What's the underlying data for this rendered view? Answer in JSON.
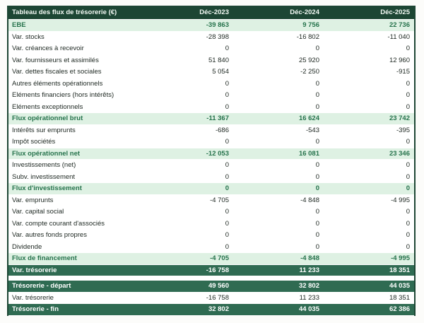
{
  "page": {
    "background": "#fcfcfa"
  },
  "colors": {
    "header_bg": "#1d4634",
    "header_text": "#f3f9f4",
    "subtotal_bg": "#def1e3",
    "subtotal_text": "#26734c",
    "total_bg": "#2f6b52",
    "total_text": "#ffffff",
    "row_bg": "#ffffff",
    "row_text": "#212b25",
    "table_border": "#1d4634"
  },
  "table": {
    "title": "Tableau des flux de trésorerie (€)",
    "columns": [
      "Déc-2023",
      "Déc-2024",
      "Déc-2025"
    ],
    "rows": [
      {
        "label": "EBE",
        "type": "subtotal",
        "values": [
          "-39 863",
          "9 756",
          "22 736"
        ]
      },
      {
        "label": "Var. stocks",
        "type": "normal",
        "values": [
          "-28 398",
          "-16 802",
          "-11 040"
        ]
      },
      {
        "label": "Var. créances à recevoir",
        "type": "normal",
        "values": [
          "0",
          "0",
          "0"
        ]
      },
      {
        "label": "Var. fournisseurs et assimilés",
        "type": "normal",
        "values": [
          "51 840",
          "25 920",
          "12 960"
        ]
      },
      {
        "label": "Var. dettes fiscales et sociales",
        "type": "normal",
        "values": [
          "5 054",
          "-2 250",
          "-915"
        ]
      },
      {
        "label": "Autres éléments opérationnels",
        "type": "normal",
        "values": [
          "0",
          "0",
          "0"
        ]
      },
      {
        "label": "Eléments financiers (hors intérêts)",
        "type": "normal",
        "values": [
          "0",
          "0",
          "0"
        ]
      },
      {
        "label": "Eléments exceptionnels",
        "type": "normal",
        "values": [
          "0",
          "0",
          "0"
        ]
      },
      {
        "label": "Flux opérationnel brut",
        "type": "subtotal",
        "values": [
          "-11 367",
          "16 624",
          "23 742"
        ]
      },
      {
        "label": "Intérêts sur emprunts",
        "type": "normal",
        "values": [
          "-686",
          "-543",
          "-395"
        ]
      },
      {
        "label": "Impôt sociétés",
        "type": "normal",
        "values": [
          "0",
          "0",
          "0"
        ]
      },
      {
        "label": "Flux opérationnel net",
        "type": "subtotal",
        "values": [
          "-12 053",
          "16 081",
          "23 346"
        ]
      },
      {
        "label": "Investissements (net)",
        "type": "normal",
        "values": [
          "0",
          "0",
          "0"
        ]
      },
      {
        "label": "Subv. investissement",
        "type": "normal",
        "values": [
          "0",
          "0",
          "0"
        ]
      },
      {
        "label": "Flux d'investissement",
        "type": "subtotal",
        "values": [
          "0",
          "0",
          "0"
        ]
      },
      {
        "label": "Var. emprunts",
        "type": "normal",
        "values": [
          "-4 705",
          "-4 848",
          "-4 995"
        ]
      },
      {
        "label": "Var. capital social",
        "type": "normal",
        "values": [
          "0",
          "0",
          "0"
        ]
      },
      {
        "label": "Var. compte courant d'associés",
        "type": "normal",
        "values": [
          "0",
          "0",
          "0"
        ]
      },
      {
        "label": "Var. autres fonds propres",
        "type": "normal",
        "values": [
          "0",
          "0",
          "0"
        ]
      },
      {
        "label": "Dividende",
        "type": "normal",
        "values": [
          "0",
          "0",
          "0"
        ]
      },
      {
        "label": "Flux de financement",
        "type": "subtotal",
        "values": [
          "-4 705",
          "-4 848",
          "-4 995"
        ]
      },
      {
        "label": "Var. trésorerie",
        "type": "total",
        "values": [
          "-16 758",
          "11 233",
          "18 351"
        ]
      },
      {
        "type": "spacer"
      },
      {
        "label": "Trésorerie - départ",
        "type": "total",
        "values": [
          "49 560",
          "32 802",
          "44 035"
        ]
      },
      {
        "label": "Var. trésorerie",
        "type": "normal",
        "values": [
          "-16 758",
          "11 233",
          "18 351"
        ]
      },
      {
        "label": "Trésorerie - fin",
        "type": "total",
        "values": [
          "32 802",
          "44 035",
          "62 386"
        ]
      }
    ]
  },
  "chart_data": {
    "type": "table",
    "title": "Tableau des flux de trésorerie (€)",
    "columns": [
      "Déc-2023",
      "Déc-2024",
      "Déc-2025"
    ],
    "rows": [
      [
        "EBE",
        -39863,
        9756,
        22736
      ],
      [
        "Var. stocks",
        -28398,
        -16802,
        -11040
      ],
      [
        "Var. créances à recevoir",
        0,
        0,
        0
      ],
      [
        "Var. fournisseurs et assimilés",
        51840,
        25920,
        12960
      ],
      [
        "Var. dettes fiscales et sociales",
        5054,
        -2250,
        -915
      ],
      [
        "Autres éléments opérationnels",
        0,
        0,
        0
      ],
      [
        "Eléments financiers (hors intérêts)",
        0,
        0,
        0
      ],
      [
        "Eléments exceptionnels",
        0,
        0,
        0
      ],
      [
        "Flux opérationnel brut",
        -11367,
        16624,
        23742
      ],
      [
        "Intérêts sur emprunts",
        -686,
        -543,
        -395
      ],
      [
        "Impôt sociétés",
        0,
        0,
        0
      ],
      [
        "Flux opérationnel net",
        -12053,
        16081,
        23346
      ],
      [
        "Investissements (net)",
        0,
        0,
        0
      ],
      [
        "Subv. investissement",
        0,
        0,
        0
      ],
      [
        "Flux d'investissement",
        0,
        0,
        0
      ],
      [
        "Var. emprunts",
        -4705,
        -4848,
        -4995
      ],
      [
        "Var. capital social",
        0,
        0,
        0
      ],
      [
        "Var. compte courant d'associés",
        0,
        0,
        0
      ],
      [
        "Var. autres fonds propres",
        0,
        0,
        0
      ],
      [
        "Dividende",
        0,
        0,
        0
      ],
      [
        "Flux de financement",
        -4705,
        -4848,
        -4995
      ],
      [
        "Var. trésorerie",
        -16758,
        11233,
        18351
      ],
      [
        "Trésorerie - départ",
        49560,
        32802,
        44035
      ],
      [
        "Var. trésorerie",
        -16758,
        11233,
        18351
      ],
      [
        "Trésorerie - fin",
        32802,
        44035,
        62386
      ]
    ]
  }
}
